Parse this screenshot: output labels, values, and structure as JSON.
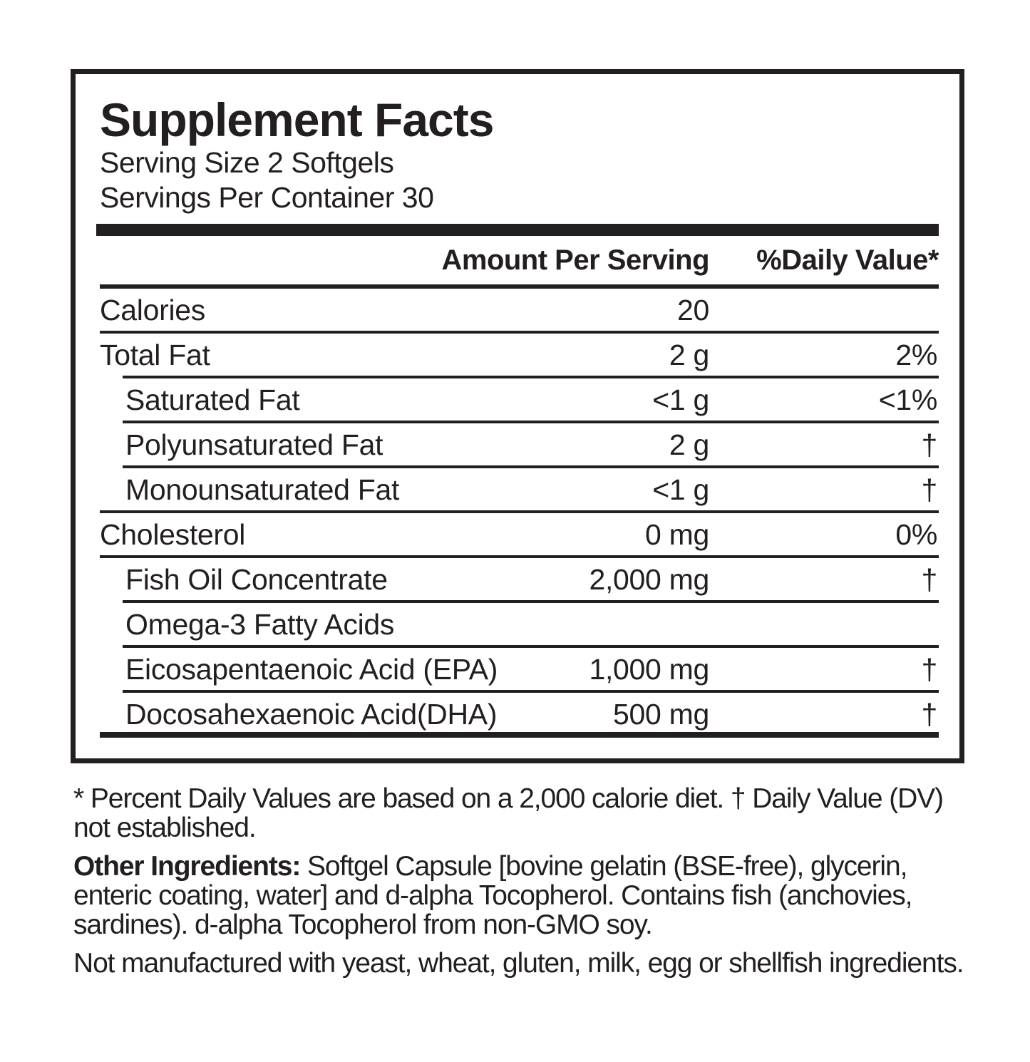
{
  "colors": {
    "ink": "#231f20",
    "background": "#ffffff"
  },
  "label": {
    "title": "Supplement Facts",
    "serving_size": "Serving Size 2 Softgels",
    "servings_per_container": "Servings Per Container 30",
    "column_headers": {
      "amount": "Amount Per Serving",
      "daily_value": "%Daily Value*"
    },
    "rows": [
      {
        "name": "Calories",
        "amount": "20",
        "daily_value": "",
        "indent": false,
        "rule_below": "full"
      },
      {
        "name": "Total Fat",
        "amount": "2 g",
        "daily_value": "2%",
        "indent": false,
        "rule_below": "indent"
      },
      {
        "name": "Saturated Fat",
        "amount": "<1 g",
        "daily_value": "<1%",
        "indent": true,
        "rule_below": "indent"
      },
      {
        "name": "Polyunsaturated Fat",
        "amount": "2 g",
        "daily_value": "†",
        "indent": true,
        "rule_below": "indent"
      },
      {
        "name": "Monounsaturated Fat",
        "amount": "<1 g",
        "daily_value": "†",
        "indent": true,
        "rule_below": "full"
      },
      {
        "name": "Cholesterol",
        "amount": "0 mg",
        "daily_value": "0%",
        "indent": false,
        "rule_below": "full"
      },
      {
        "name": "Fish Oil Concentrate",
        "amount": "2,000 mg",
        "daily_value": "†",
        "indent": true,
        "rule_below": "indent"
      },
      {
        "name": "Omega-3 Fatty Acids",
        "amount": "",
        "daily_value": "",
        "indent": true,
        "rule_below": "indent"
      },
      {
        "name": "Eicosapentaenoic Acid (EPA)",
        "amount": "1,000 mg",
        "daily_value": "†",
        "indent": true,
        "rule_below": "indent"
      },
      {
        "name": "Docosahexaenoic Acid(DHA)",
        "amount": "500 mg",
        "daily_value": "†",
        "indent": true,
        "rule_below": "thick"
      }
    ]
  },
  "footnotes": {
    "daily_value_note": "* Percent Daily Values are based on a 2,000 calorie diet. † Daily Value (DV) not established.",
    "other_ingredients_label": "Other Ingredients:",
    "other_ingredients_text": " Softgel Capsule [bovine gelatin (BSE-free), glycerin, enteric coating, water] and d-alpha Tocopherol. Contains fish (anchovies, sardines). d-alpha Tocopherol from non-GMO soy.",
    "allergen_note": "Not manufactured with yeast, wheat, gluten, milk, egg or shellfish ingredients."
  }
}
